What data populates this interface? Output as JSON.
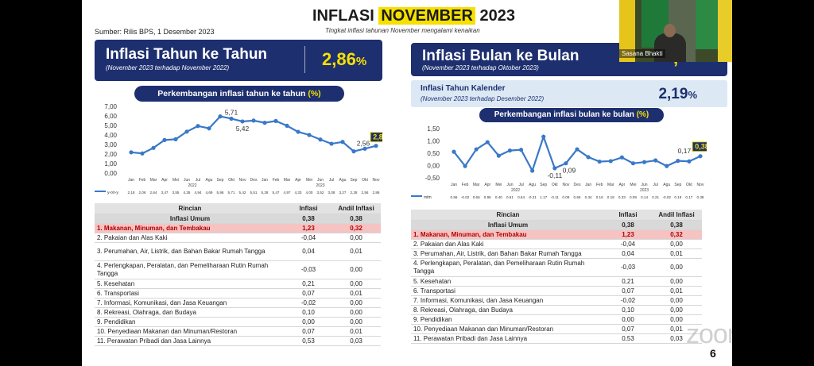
{
  "slide": {
    "title_prefix": "INFLASI ",
    "title_highlight": "NOVEMBER",
    "title_suffix": " 2023",
    "subtitle": "Tingkat inflasi tahunan November mengalami kenaikan",
    "source": "Sumber: Rilis BPS, 1 Desember 2023",
    "page_number": "6"
  },
  "left": {
    "heading": "Inflasi Tahun ke Tahun",
    "heading_sub": "(November 2023 terhadap November 2022)",
    "value": "2,86",
    "value_unit": "%",
    "chart_title": "Perkembangan inflasi tahun ke tahun ",
    "chart_title_unit": "(%)"
  },
  "right": {
    "heading": "Inflasi Bulan ke Bulan",
    "heading_sub": "(November 2023 terhadap Oktober 2023)",
    "value_partial": ",",
    "kalender_title": "Inflasi Tahun Kalender",
    "kalender_sub": "(November 2023 terhadap Desember 2022)",
    "kalender_value": "2,19",
    "kalender_unit": "%",
    "chart_title": "Perkembangan inflasi bulan ke bulan ",
    "chart_title_unit": "(%)"
  },
  "colors": {
    "navy": "#1d2f6f",
    "line": "#3a78c8",
    "yellow": "#f6e000",
    "highlight_row": "#f6c3c3"
  },
  "chart_data": [
    {
      "type": "line",
      "categories": [
        "Jan",
        "Feb",
        "Mar",
        "Apr",
        "Mei",
        "Jun",
        "Jul",
        "Agu",
        "Sep",
        "Okt",
        "Nov",
        "Des",
        "Jan",
        "Feb",
        "Mar",
        "Apr",
        "Mei",
        "Jun",
        "Jul",
        "Agu",
        "Sep",
        "Okt",
        "Nov"
      ],
      "year_labels": [
        "2022",
        "2023"
      ],
      "yticks": [
        "0,00",
        "1,00",
        "2,00",
        "3,00",
        "4,00",
        "5,00",
        "6,00",
        "7,00"
      ],
      "ylim": [
        0,
        7
      ],
      "series": [
        {
          "name": "y-on-y",
          "values": [
            2.18,
            2.06,
            2.64,
            3.47,
            3.55,
            4.35,
            4.94,
            4.69,
            5.95,
            5.71,
            5.42,
            5.51,
            5.28,
            5.47,
            4.97,
            4.33,
            4.0,
            3.52,
            3.08,
            3.27,
            2.28,
            2.56,
            2.86
          ]
        }
      ],
      "table_values": [
        "2,18",
        "2,06",
        "2,64",
        "3,47",
        "3,55",
        "4,35",
        "4,94",
        "4,69",
        "5,95",
        "5,71",
        "5,42",
        "5,51",
        "5,28",
        "5,47",
        "4,97",
        "4,33",
        "4,00",
        "3,52",
        "3,08",
        "3,27",
        "2,28",
        "2,56",
        "2,86"
      ],
      "labels": {
        "peak": "5,71",
        "nov22": "5,42",
        "okt23": "2,56",
        "last": "2,86"
      }
    },
    {
      "type": "line",
      "categories": [
        "Jan",
        "Feb",
        "Mar",
        "Apr",
        "Mei",
        "Jun",
        "Jul",
        "Agu",
        "Sep",
        "Okt",
        "Nov",
        "Des",
        "Jan",
        "Feb",
        "Mar",
        "Apr",
        "Mei",
        "Jun",
        "Jul",
        "Agu",
        "Sep",
        "Okt",
        "Nov"
      ],
      "year_labels": [
        "2022",
        "2023"
      ],
      "yticks": [
        "-0,50",
        "0,00",
        "0,50",
        "1,00",
        "1,50"
      ],
      "ylim": [
        -0.5,
        1.5
      ],
      "series": [
        {
          "name": "mtm",
          "values": [
            0.56,
            -0.02,
            0.66,
            0.95,
            0.4,
            0.61,
            0.64,
            -0.21,
            1.17,
            -0.11,
            0.09,
            0.66,
            0.34,
            0.16,
            0.18,
            0.33,
            0.09,
            0.14,
            0.21,
            -0.02,
            0.19,
            0.17,
            0.38
          ]
        }
      ],
      "table_values": [
        "0,56",
        "-0,02",
        "0,66",
        "0,95",
        "0,40",
        "0,61",
        "0,64",
        "-0,21",
        "1,17",
        "-0,11",
        "0,09",
        "0,66",
        "0,34",
        "0,16",
        "0,18",
        "0,33",
        "0,09",
        "0,14",
        "0,21",
        "-0,02",
        "0,19",
        "0,17",
        "0,38"
      ],
      "labels": {
        "okt22": "-0,11",
        "nov22": "0,09",
        "okt23": "0,17",
        "last": "0,38"
      }
    }
  ],
  "table": {
    "col_rincian": "Rincian",
    "col_inflasi": "Inflasi",
    "col_andil": "Andil Inflasi",
    "rows": [
      {
        "label": "Inflasi Umum",
        "inflasi": "0,38",
        "andil": "0,38"
      },
      {
        "label": "1.  Makanan, Minuman, dan Tembakau",
        "inflasi": "1,23",
        "andil": "0,32"
      },
      {
        "label": "2.  Pakaian dan Alas Kaki",
        "inflasi": "-0,04",
        "andil": "0,00"
      },
      {
        "label": "3.  Perumahan, Air, Listrik, dan Bahan Bakar Rumah Tangga",
        "inflasi": "0,04",
        "andil": "0,01"
      },
      {
        "label": "4.  Perlengkapan, Peralatan, dan Pemeliharaan Rutin Rumah Tangga",
        "inflasi": "-0,03",
        "andil": "0,00"
      },
      {
        "label": "5.  Kesehatan",
        "inflasi": "0,21",
        "andil": "0,00"
      },
      {
        "label": "6.  Transportasi",
        "inflasi": "0,07",
        "andil": "0,01"
      },
      {
        "label": "7.  Informasi, Komunikasi, dan Jasa Keuangan",
        "inflasi": "-0,02",
        "andil": "0,00"
      },
      {
        "label": "8.  Rekreasi, Olahraga, dan Budaya",
        "inflasi": "0,10",
        "andil": "0,00"
      },
      {
        "label": "9.  Pendidikan",
        "inflasi": "0,00",
        "andil": "0,00"
      },
      {
        "label": "10. Penyediaan Makanan dan Minuman/Restoran",
        "inflasi": "0,07",
        "andil": "0,01"
      },
      {
        "label": "11. Perawatan Pribadi dan Jasa Lainnya",
        "inflasi": "0,53",
        "andil": "0,03"
      }
    ]
  },
  "video": {
    "name": "Sasana Bhakti"
  },
  "zoom_watermark": "zoom"
}
